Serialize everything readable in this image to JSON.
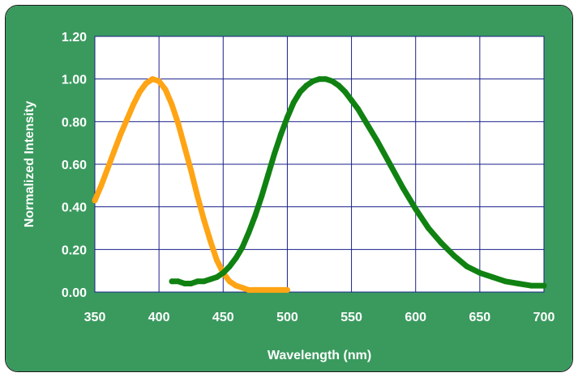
{
  "chart_data": {
    "type": "line",
    "title": "",
    "xlabel": "Wavelength (nm)",
    "ylabel": "Normalized Intensity",
    "xlim": [
      350,
      700
    ],
    "ylim": [
      0,
      1.2
    ],
    "xticks": [
      "350",
      "400",
      "450",
      "500",
      "550",
      "600",
      "650",
      "700"
    ],
    "yticks": [
      "0.00",
      "0.20",
      "0.40",
      "0.60",
      "0.80",
      "1.00",
      "1.20"
    ],
    "grid": true,
    "legend": "none",
    "colors": {
      "background": "#3a9a5e",
      "plot_area": "#ffffff",
      "grid": "#1a2088",
      "series_orange": "#ffa414",
      "series_green": "#108212"
    },
    "series": [
      {
        "color": "#ffa414",
        "x": [
          350,
          355,
          360,
          365,
          370,
          375,
          380,
          385,
          390,
          395,
          400,
          405,
          410,
          415,
          420,
          425,
          430,
          435,
          440,
          445,
          450,
          455,
          460,
          465,
          470,
          475,
          480,
          485,
          490,
          495,
          500
        ],
        "y": [
          0.43,
          0.5,
          0.58,
          0.66,
          0.74,
          0.81,
          0.88,
          0.94,
          0.98,
          1.0,
          0.99,
          0.95,
          0.88,
          0.79,
          0.68,
          0.57,
          0.45,
          0.34,
          0.24,
          0.15,
          0.09,
          0.05,
          0.03,
          0.02,
          0.01,
          0.01,
          0.01,
          0.01,
          0.01,
          0.01,
          0.01
        ]
      },
      {
        "color": "#108212",
        "x": [
          410,
          415,
          420,
          425,
          430,
          435,
          440,
          445,
          450,
          455,
          460,
          465,
          470,
          475,
          480,
          485,
          490,
          495,
          500,
          505,
          510,
          515,
          520,
          525,
          530,
          535,
          540,
          545,
          550,
          555,
          560,
          570,
          580,
          590,
          600,
          610,
          620,
          630,
          640,
          650,
          660,
          670,
          680,
          690,
          700
        ],
        "y": [
          0.05,
          0.05,
          0.04,
          0.04,
          0.05,
          0.05,
          0.06,
          0.07,
          0.09,
          0.12,
          0.16,
          0.21,
          0.28,
          0.36,
          0.45,
          0.55,
          0.65,
          0.74,
          0.82,
          0.89,
          0.94,
          0.97,
          0.99,
          1.0,
          1.0,
          0.99,
          0.97,
          0.94,
          0.9,
          0.86,
          0.81,
          0.71,
          0.6,
          0.49,
          0.39,
          0.3,
          0.23,
          0.17,
          0.12,
          0.09,
          0.07,
          0.05,
          0.04,
          0.03,
          0.03
        ]
      }
    ]
  }
}
